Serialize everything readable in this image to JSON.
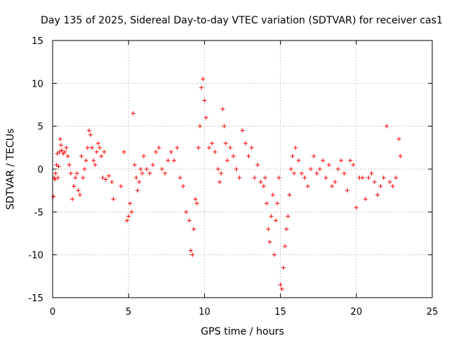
{
  "chart_data": {
    "type": "scatter",
    "title": "Day 135 of 2025, Sidereal Day-to-day VTEC variation (SDTVAR) for receiver cas1",
    "xlabel": "GPS time / hours",
    "ylabel": "SDTVAR / TECUs",
    "xlim": [
      0,
      25
    ],
    "ylim": [
      -15,
      15
    ],
    "xticks": [
      0,
      5,
      10,
      15,
      20,
      25
    ],
    "yticks": [
      -15,
      -10,
      -5,
      0,
      5,
      10,
      15
    ],
    "xtick_labels": [
      "0",
      "5",
      "10",
      "15",
      "20",
      "25"
    ],
    "ytick_labels": [
      "-15",
      "-10",
      "-5",
      "0",
      "5",
      "10",
      "15"
    ],
    "grid": true,
    "marker": "+",
    "color": "#ff0000",
    "series": [
      {
        "name": "SDTVAR",
        "x": [
          0.05,
          0.1,
          0.15,
          0.2,
          0.25,
          0.3,
          0.35,
          0.4,
          0.45,
          0.5,
          0.55,
          0.6,
          0.7,
          0.8,
          0.9,
          1.0,
          1.1,
          1.2,
          1.3,
          1.4,
          1.5,
          1.6,
          1.7,
          1.8,
          1.9,
          2.0,
          2.1,
          2.2,
          2.3,
          2.4,
          2.5,
          2.6,
          2.7,
          2.8,
          2.9,
          3.0,
          3.1,
          3.2,
          3.3,
          3.4,
          3.5,
          3.7,
          3.9,
          4.0,
          4.5,
          4.7,
          4.9,
          5.0,
          5.1,
          5.2,
          5.3,
          5.4,
          5.5,
          5.6,
          5.7,
          5.8,
          5.9,
          6.0,
          6.2,
          6.4,
          6.6,
          6.8,
          7.0,
          7.2,
          7.4,
          7.6,
          7.8,
          8.0,
          8.2,
          8.4,
          8.6,
          8.8,
          9.0,
          9.1,
          9.2,
          9.3,
          9.4,
          9.5,
          9.6,
          9.7,
          9.8,
          9.9,
          10.0,
          10.1,
          10.3,
          10.5,
          10.7,
          10.9,
          11.0,
          11.1,
          11.2,
          11.3,
          11.4,
          11.5,
          11.7,
          11.9,
          12.1,
          12.3,
          12.5,
          12.7,
          12.9,
          13.1,
          13.3,
          13.5,
          13.7,
          13.9,
          14.0,
          14.1,
          14.2,
          14.3,
          14.4,
          14.5,
          14.6,
          14.7,
          14.8,
          14.9,
          15.0,
          15.1,
          15.2,
          15.3,
          15.4,
          15.5,
          15.6,
          15.7,
          15.8,
          15.9,
          16.0,
          16.2,
          16.4,
          16.6,
          16.8,
          17.0,
          17.2,
          17.4,
          17.6,
          17.8,
          18.0,
          18.2,
          18.4,
          18.6,
          18.8,
          19.0,
          19.2,
          19.4,
          19.6,
          19.8,
          20.0,
          20.2,
          20.4,
          20.6,
          20.8,
          21.0,
          21.2,
          21.4,
          21.6,
          21.8,
          22.0,
          22.2,
          22.4,
          22.6,
          22.8,
          22.9
        ],
        "y": [
          -3.2,
          -1.0,
          -1.2,
          -0.5,
          0.5,
          1.8,
          -1.0,
          0.3,
          2.0,
          3.5,
          2.8,
          2.2,
          1.8,
          2.0,
          2.5,
          1.5,
          0.5,
          -0.5,
          -3.5,
          -2.0,
          -1.0,
          -0.5,
          -2.5,
          -3.0,
          1.5,
          -1.0,
          0.0,
          1.0,
          2.5,
          4.5,
          4.0,
          2.5,
          1.0,
          0.5,
          2.0,
          3.0,
          2.5,
          1.5,
          -1.0,
          2.0,
          -1.2,
          -0.8,
          -1.5,
          -3.5,
          -2.0,
          2.0,
          -6.0,
          -5.5,
          -4.0,
          -5.0,
          6.5,
          0.5,
          -1.0,
          -2.5,
          -1.5,
          0.0,
          -0.5,
          1.5,
          0.0,
          -0.5,
          0.5,
          2.0,
          2.5,
          0.0,
          -0.5,
          1.0,
          2.0,
          1.0,
          2.5,
          -1.0,
          -2.0,
          -5.0,
          -6.0,
          -9.5,
          -10.0,
          -7.0,
          -3.5,
          -4.0,
          2.5,
          5.0,
          9.5,
          10.5,
          8.0,
          6.0,
          2.5,
          3.0,
          2.0,
          0.0,
          -1.5,
          -0.5,
          7.0,
          5.0,
          3.0,
          1.0,
          2.5,
          1.5,
          0.0,
          -1.0,
          4.5,
          3.0,
          1.5,
          2.5,
          -1.0,
          0.5,
          -1.5,
          -2.0,
          -1.0,
          -4.0,
          -7.0,
          -8.5,
          -5.5,
          -3.0,
          -10.0,
          -6.0,
          -4.0,
          -1.0,
          -13.5,
          -14.0,
          -11.5,
          -9.0,
          -7.0,
          -5.5,
          -3.0,
          0.0,
          1.5,
          -0.5,
          2.5,
          1.0,
          -0.5,
          -1.0,
          -2.0,
          0.0,
          1.5,
          -0.5,
          0.0,
          1.0,
          -1.0,
          0.5,
          -2.0,
          -1.5,
          0.0,
          1.0,
          -0.5,
          -2.5,
          1.0,
          0.5,
          -4.5,
          -1.0,
          -1.0,
          -3.5,
          -1.0,
          -0.5,
          -1.5,
          -3.0,
          -2.0,
          -1.0,
          5.0,
          -1.5,
          -2.0,
          -1.0,
          3.5,
          1.5
        ]
      }
    ]
  }
}
